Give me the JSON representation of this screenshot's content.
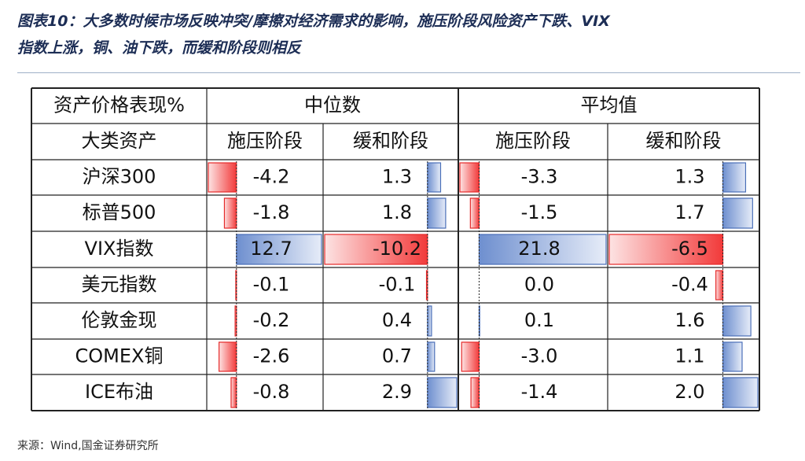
{
  "header": {
    "title": [
      "图表10：大多数时候市场反映冲突/摩擦对经济需求的影响，施压阶段风险资产下跌、VIX",
      "指数上涨，铜、油下跌，而缓和阶段则相反"
    ]
  },
  "table": {
    "corner": "资产价格表现%",
    "groups": [
      "中位数",
      "平均值"
    ],
    "row_header": "大类资产",
    "subheaders": [
      "施压阶段",
      "缓和阶段",
      "施压阶段",
      "缓和阶段"
    ],
    "rows": [
      {
        "label": "沪深300",
        "values": [
          -4.2,
          1.3,
          -3.3,
          1.3
        ],
        "value_labels": [
          "-4.2",
          "1.3",
          "-3.3",
          "1.3"
        ]
      },
      {
        "label": "标普500",
        "values": [
          -1.8,
          1.8,
          -1.5,
          1.7
        ],
        "value_labels": [
          "-1.8",
          "1.8",
          "-1.5",
          "1.7"
        ]
      },
      {
        "label": "VIX指数",
        "values": [
          12.7,
          -10.2,
          21.8,
          -6.5
        ],
        "value_labels": [
          "12.7",
          "-10.2",
          "21.8",
          "-6.5"
        ]
      },
      {
        "label": "美元指数",
        "values": [
          -0.1,
          -0.1,
          0.0,
          -0.4
        ],
        "value_labels": [
          "-0.1",
          "-0.1",
          "0.0",
          "-0.4"
        ]
      },
      {
        "label": "伦敦金现",
        "values": [
          -0.2,
          0.4,
          0.1,
          1.6
        ],
        "value_labels": [
          "-0.2",
          "0.4",
          "0.1",
          "1.6"
        ]
      },
      {
        "label": "COMEX铜",
        "values": [
          -2.6,
          0.7,
          -3.0,
          1.1
        ],
        "value_labels": [
          "-2.6",
          "0.7",
          "-3.0",
          "1.1"
        ]
      },
      {
        "label": "ICE布油",
        "values": [
          -0.8,
          2.9,
          -1.4,
          2.0
        ],
        "value_labels": [
          "-0.8",
          "2.9",
          "-1.4",
          "2.0"
        ]
      }
    ]
  },
  "footer": {
    "source": "来源：Wind,国金证券研究所"
  }
}
